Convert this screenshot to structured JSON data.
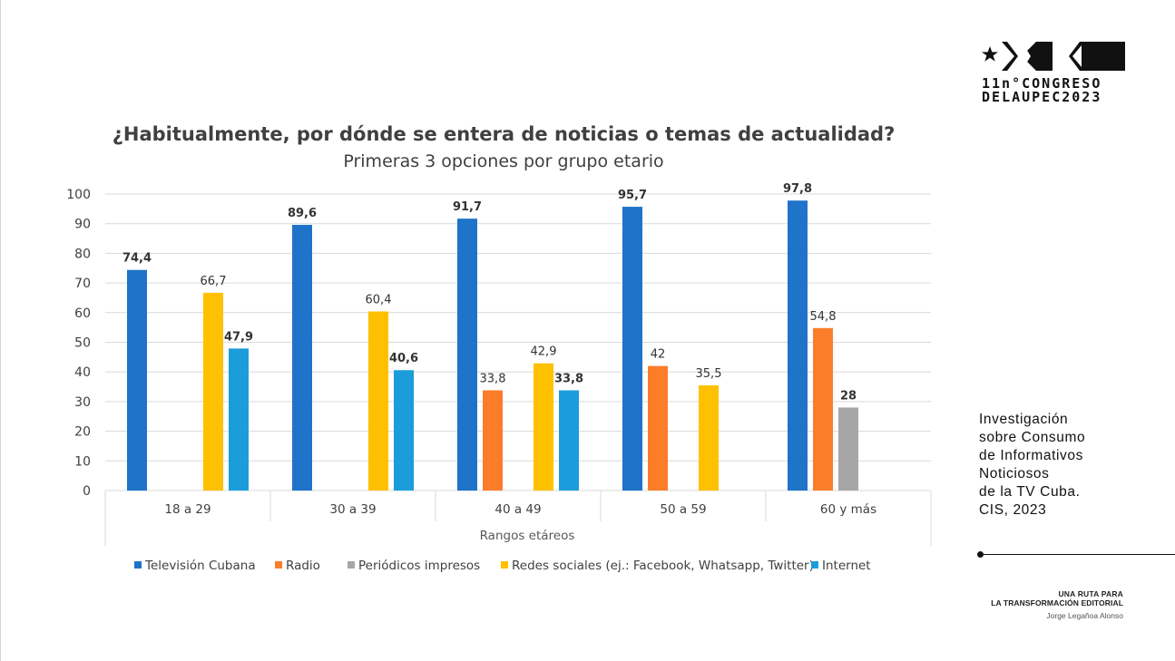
{
  "chart_data": {
    "type": "bar",
    "title": "¿Habitualmente, por dónde se entera de noticias o temas de actualidad?",
    "subtitle": "Primeras 3 opciones por grupo etario",
    "xlabel": "Rangos etáreos",
    "ylabel": "",
    "ylim": [
      0,
      100
    ],
    "yticks": [
      0,
      10,
      20,
      30,
      40,
      50,
      60,
      70,
      80,
      90,
      100
    ],
    "grid": true,
    "legend_position": "bottom",
    "categories": [
      "18 a 29",
      "30 a 39",
      "40 a 49",
      "50 a 59",
      "60 y más"
    ],
    "series": [
      {
        "name": "Televisión Cubana",
        "color": "#1f73c8",
        "values": [
          74.4,
          89.6,
          91.7,
          95.7,
          97.8
        ],
        "labels": [
          "74,4",
          "89,6",
          "91,7",
          "95,7",
          "97,8"
        ]
      },
      {
        "name": "Radio",
        "color": "#fb7d2a",
        "values": [
          null,
          null,
          33.8,
          42,
          54.8
        ],
        "labels": [
          "",
          "",
          "33,8",
          "42",
          "54,8"
        ]
      },
      {
        "name": "Periódicos impresos",
        "color": "#a6a6a6",
        "values": [
          null,
          null,
          null,
          null,
          28
        ],
        "labels": [
          "",
          "",
          "",
          "",
          "28"
        ]
      },
      {
        "name": "Redes sociales (ej.: Facebook, Whatsapp, Twitter)",
        "color": "#ffc000",
        "values": [
          66.7,
          60.4,
          42.9,
          35.5,
          null
        ],
        "labels": [
          "66,7",
          "60,4",
          "42,9",
          "35,5",
          ""
        ]
      },
      {
        "name": "Internet",
        "color": "#1c9ddb",
        "values": [
          47.9,
          40.6,
          33.8,
          null,
          null
        ],
        "labels": [
          "47,9",
          "40,6",
          "33,8",
          "",
          ""
        ]
      }
    ]
  },
  "brand": {
    "line1": "11n°CONGRESO",
    "line2": "DELAUPEC2023"
  },
  "side_note": {
    "lines": [
      "Investigación",
      "sobre Consumo",
      "de Informativos",
      "Noticiosos",
      "de la TV Cuba.",
      "CIS, 2023"
    ]
  },
  "footer": {
    "line1": "UNA RUTA PARA",
    "line2": "LA TRANSFORMACIÓN EDITORIAL",
    "author": "Jorge Legañoa Alonso"
  }
}
